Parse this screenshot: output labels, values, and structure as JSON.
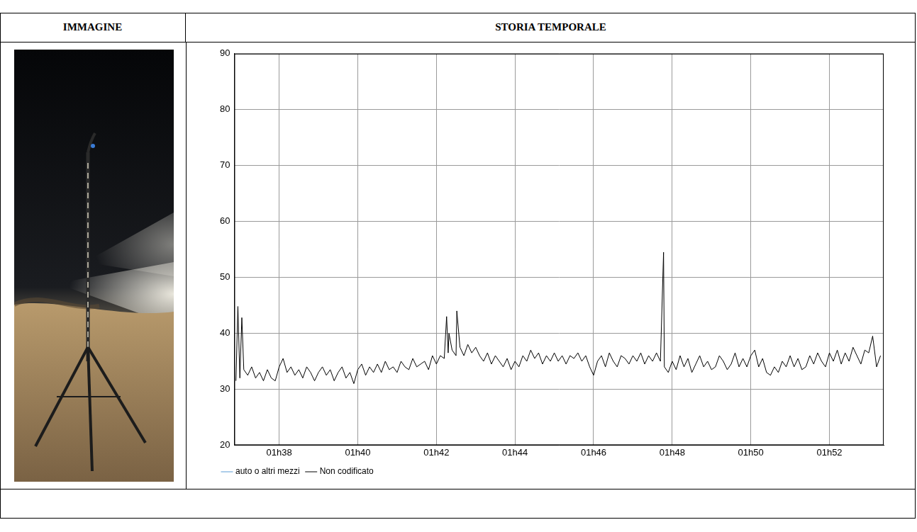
{
  "table": {
    "headers": [
      "IMMAGINE",
      "STORIA TEMPORALE"
    ]
  },
  "chart_data": {
    "type": "line",
    "x": [
      96.9,
      96.95,
      97.0,
      97.05,
      97.1,
      97.2,
      97.3,
      97.4,
      97.5,
      97.6,
      97.7,
      97.8,
      97.9,
      98.0,
      98.1,
      98.2,
      98.3,
      98.4,
      98.5,
      98.6,
      98.7,
      98.8,
      98.9,
      99.0,
      99.1,
      99.2,
      99.3,
      99.4,
      99.5,
      99.6,
      99.7,
      99.8,
      99.9,
      100.0,
      100.1,
      100.2,
      100.3,
      100.4,
      100.5,
      100.6,
      100.7,
      100.8,
      100.9,
      101.0,
      101.1,
      101.2,
      101.3,
      101.4,
      101.5,
      101.6,
      101.7,
      101.8,
      101.9,
      102.0,
      102.1,
      102.2,
      102.26,
      102.3,
      102.32,
      102.4,
      102.5,
      102.52,
      102.6,
      102.7,
      102.8,
      102.9,
      103.0,
      103.1,
      103.2,
      103.3,
      103.4,
      103.5,
      103.6,
      103.7,
      103.8,
      103.9,
      104.0,
      104.1,
      104.2,
      104.3,
      104.4,
      104.5,
      104.6,
      104.7,
      104.8,
      104.9,
      105.0,
      105.1,
      105.2,
      105.3,
      105.4,
      105.5,
      105.6,
      105.7,
      105.8,
      105.9,
      106.0,
      106.1,
      106.2,
      106.3,
      106.4,
      106.5,
      106.6,
      106.7,
      106.8,
      106.9,
      107.0,
      107.1,
      107.2,
      107.3,
      107.4,
      107.5,
      107.6,
      107.7,
      107.78,
      107.8,
      107.9,
      108.0,
      108.1,
      108.2,
      108.3,
      108.4,
      108.5,
      108.6,
      108.7,
      108.8,
      108.9,
      109.0,
      109.1,
      109.2,
      109.3,
      109.4,
      109.5,
      109.6,
      109.7,
      109.8,
      109.9,
      110.0,
      110.1,
      110.2,
      110.3,
      110.4,
      110.5,
      110.6,
      110.7,
      110.8,
      110.9,
      111.0,
      111.1,
      111.2,
      111.3,
      111.4,
      111.5,
      111.6,
      111.7,
      111.8,
      111.9,
      112.0,
      112.1,
      112.2,
      112.3,
      112.4,
      112.5,
      112.6,
      112.7,
      112.8,
      112.9,
      113.0,
      113.1,
      113.2,
      113.3
    ],
    "series": [
      {
        "name": "auto o altri mezzi",
        "color": "#5b9bd5",
        "values": [
          null,
          null,
          null,
          null,
          null,
          null,
          null,
          null,
          null,
          null,
          null,
          null,
          null,
          null,
          null,
          null,
          null,
          null,
          null,
          null,
          null,
          null,
          null,
          null,
          null,
          null,
          null,
          null,
          null,
          null,
          null,
          null,
          null,
          null,
          null,
          null,
          null,
          null,
          null,
          null,
          null,
          null,
          null,
          null,
          null,
          null,
          null,
          null,
          null,
          null,
          null,
          null,
          null,
          null,
          null,
          null,
          null,
          null,
          null,
          null,
          null,
          null,
          null,
          null,
          null,
          null,
          null,
          null,
          null,
          null,
          null,
          null,
          null,
          null,
          null,
          null,
          null,
          null,
          null,
          null,
          null,
          null,
          null,
          null,
          null,
          null,
          null,
          null,
          null,
          null,
          null,
          null,
          null,
          null,
          null,
          null,
          null,
          null,
          null,
          null,
          null,
          null,
          null,
          null,
          null,
          null,
          null,
          null,
          null,
          null,
          null,
          null,
          null,
          null,
          null,
          null,
          null,
          null,
          null,
          null,
          null,
          null,
          null,
          null,
          null,
          null,
          null,
          null,
          null,
          null,
          null,
          null,
          null,
          null,
          null,
          null,
          null,
          null,
          null,
          null,
          null,
          null,
          null,
          null,
          null,
          null,
          null,
          null,
          null,
          null,
          null,
          null,
          null,
          null,
          null,
          null,
          null,
          null,
          null,
          null,
          null,
          null,
          null,
          null,
          null,
          null,
          null,
          null,
          null,
          null,
          null
        ]
      },
      {
        "name": "Non codificato",
        "color": "#000000",
        "values": [
          31.5,
          44.8,
          32,
          42.8,
          33.5,
          32.5,
          34,
          32,
          33,
          31.5,
          33.5,
          32,
          31.5,
          34,
          35.5,
          33,
          34,
          32.5,
          33.5,
          32,
          34,
          33,
          31.5,
          33,
          34,
          32.5,
          33.5,
          31.5,
          33,
          34,
          32,
          33,
          31,
          33.5,
          34.5,
          32.5,
          34,
          33,
          34.5,
          33,
          35,
          33.5,
          34,
          33,
          35,
          34,
          33.5,
          35.5,
          34,
          34.5,
          35,
          33.5,
          36,
          34.5,
          36,
          35.5,
          43,
          36.5,
          40,
          37,
          36,
          44,
          37.5,
          36,
          38,
          36.5,
          37.5,
          36,
          35,
          36.5,
          34.5,
          36,
          35,
          34,
          35.5,
          33.5,
          35,
          34,
          36,
          35,
          37,
          35.5,
          36.5,
          34.5,
          36,
          35,
          36.5,
          35,
          36,
          34.5,
          36,
          35.5,
          36.5,
          35,
          36,
          34,
          32.5,
          35,
          36,
          34,
          36.5,
          35,
          34,
          36,
          35.5,
          34.5,
          36,
          35,
          36.5,
          34.5,
          36,
          35,
          36.5,
          35,
          54.5,
          34,
          33,
          35,
          33.5,
          36,
          34,
          35.5,
          33,
          34.5,
          36,
          34,
          35,
          33.5,
          34,
          36,
          35,
          33.5,
          34.5,
          36.5,
          34,
          35.5,
          34,
          36,
          37,
          34,
          35.5,
          33,
          32.5,
          34,
          33,
          35,
          34,
          36,
          34,
          35.5,
          33.5,
          34,
          36,
          34.5,
          36.5,
          35,
          34,
          36.5,
          35,
          37,
          34.5,
          36.5,
          35,
          37.5,
          36,
          34.5,
          37,
          36.5,
          39.5,
          34,
          36
        ]
      }
    ],
    "xlim": [
      96.86,
      113.38
    ],
    "xticks": [
      {
        "value": 98,
        "label": "01h38"
      },
      {
        "value": 100,
        "label": "01h40"
      },
      {
        "value": 102,
        "label": "01h42"
      },
      {
        "value": 104,
        "label": "01h44"
      },
      {
        "value": 106,
        "label": "01h46"
      },
      {
        "value": 108,
        "label": "01h48"
      },
      {
        "value": 110,
        "label": "01h50"
      },
      {
        "value": 112,
        "label": "01h52"
      }
    ],
    "ylim": [
      20,
      90
    ],
    "yticks": [
      20,
      30,
      40,
      50,
      60,
      70,
      80,
      90
    ],
    "grid": true,
    "legend": "bottom"
  }
}
